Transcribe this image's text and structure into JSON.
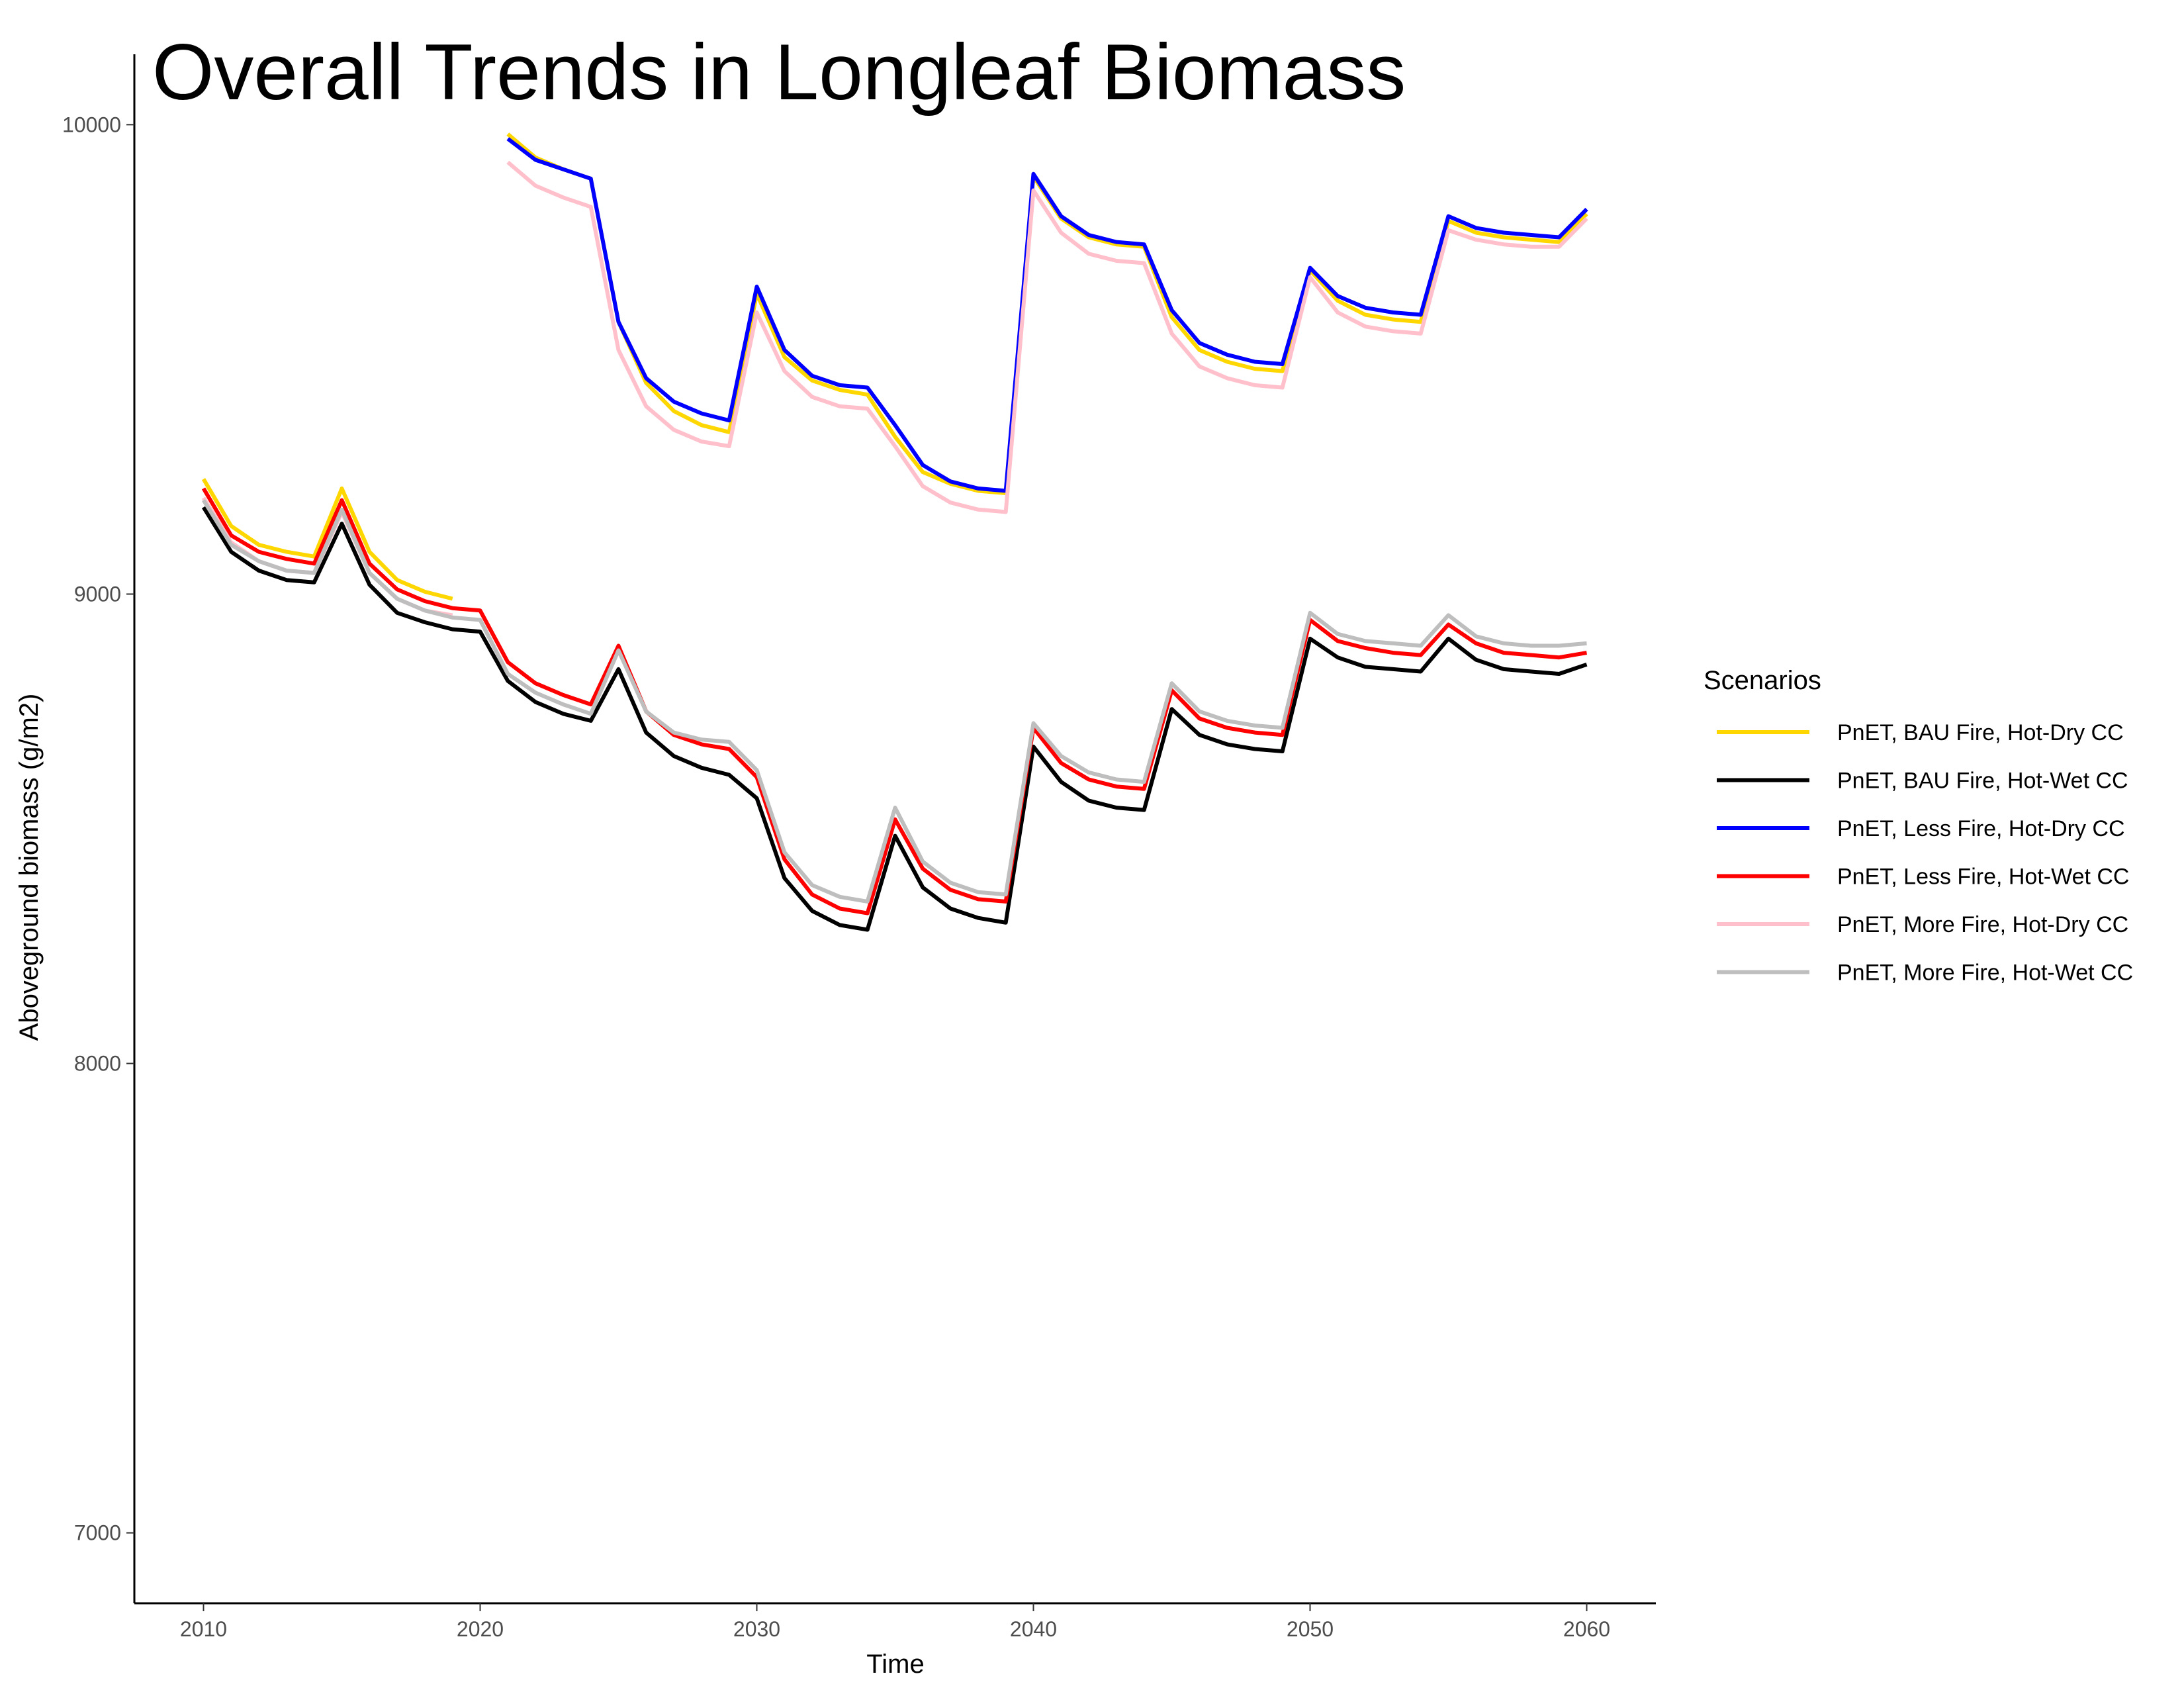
{
  "chart_data": {
    "type": "line",
    "title": "Overall Trends in Longleaf Biomass",
    "xlabel": "Time",
    "ylabel": "Aboveground biomass (g/m2)",
    "xlim": [
      2007.5,
      2062.5
    ],
    "ylim": [
      6850,
      10150
    ],
    "x_ticks": [
      2010,
      2020,
      2030,
      2040,
      2050,
      2060
    ],
    "y_ticks": [
      7000,
      8000,
      9000,
      10000
    ],
    "x_tick_labels": [
      "2010",
      "2020",
      "2030",
      "2040",
      "2050",
      "2060"
    ],
    "y_tick_labels": [
      "7000",
      "8000",
      "9000",
      "10000"
    ],
    "grid": false,
    "legend": {
      "title": "Scenarios",
      "position": "right"
    },
    "series": [
      {
        "name": "PnET, BAU Fire, Hot-Dry CC",
        "color": "#FFD700",
        "points": [
          [
            2010,
            9245
          ],
          [
            2011,
            9145
          ],
          [
            2012,
            9105
          ],
          [
            2013,
            9090
          ],
          [
            2014,
            9080
          ],
          [
            2015,
            9225
          ],
          [
            2016,
            9090
          ],
          [
            2017,
            9030
          ],
          [
            2018,
            9005
          ],
          [
            2019,
            8990
          ],
          [
            2021,
            9980
          ],
          [
            2022,
            9930
          ],
          [
            2023,
            9905
          ],
          [
            2024,
            9885
          ],
          [
            2025,
            9580
          ],
          [
            2026,
            9450
          ],
          [
            2027,
            9390
          ],
          [
            2028,
            9360
          ],
          [
            2029,
            9345
          ],
          [
            2030,
            9640
          ],
          [
            2031,
            9505
          ],
          [
            2032,
            9455
          ],
          [
            2033,
            9435
          ],
          [
            2034,
            9425
          ],
          [
            2035,
            9335
          ],
          [
            2036,
            9260
          ],
          [
            2037,
            9235
          ],
          [
            2038,
            9220
          ],
          [
            2039,
            9215
          ],
          [
            2040,
            9890
          ],
          [
            2041,
            9800
          ],
          [
            2042,
            9760
          ],
          [
            2043,
            9745
          ],
          [
            2044,
            9740
          ],
          [
            2045,
            9590
          ],
          [
            2046,
            9520
          ],
          [
            2047,
            9495
          ],
          [
            2048,
            9480
          ],
          [
            2049,
            9475
          ],
          [
            2050,
            9690
          ],
          [
            2051,
            9625
          ],
          [
            2052,
            9595
          ],
          [
            2053,
            9585
          ],
          [
            2054,
            9580
          ],
          [
            2055,
            9795
          ],
          [
            2056,
            9770
          ],
          [
            2057,
            9760
          ],
          [
            2058,
            9755
          ],
          [
            2059,
            9750
          ],
          [
            2060,
            9810
          ]
        ]
      },
      {
        "name": "PnET, BAU Fire, Hot-Wet CC",
        "color": "#000000",
        "points": [
          [
            2010,
            9185
          ],
          [
            2011,
            9090
          ],
          [
            2012,
            9050
          ],
          [
            2013,
            9030
          ],
          [
            2014,
            9025
          ],
          [
            2015,
            9150
          ],
          [
            2016,
            9020
          ],
          [
            2017,
            8960
          ],
          [
            2018,
            8940
          ],
          [
            2019,
            8925
          ],
          [
            2020,
            8920
          ],
          [
            2021,
            8815
          ],
          [
            2022,
            8770
          ],
          [
            2023,
            8745
          ],
          [
            2024,
            8730
          ],
          [
            2025,
            8840
          ],
          [
            2026,
            8705
          ],
          [
            2027,
            8655
          ],
          [
            2028,
            8630
          ],
          [
            2029,
            8615
          ],
          [
            2030,
            8565
          ],
          [
            2031,
            8395
          ],
          [
            2032,
            8325
          ],
          [
            2033,
            8295
          ],
          [
            2034,
            8285
          ],
          [
            2035,
            8485
          ],
          [
            2036,
            8375
          ],
          [
            2037,
            8330
          ],
          [
            2038,
            8310
          ],
          [
            2039,
            8300
          ],
          [
            2040,
            8675
          ],
          [
            2041,
            8600
          ],
          [
            2042,
            8560
          ],
          [
            2043,
            8545
          ],
          [
            2044,
            8540
          ],
          [
            2045,
            8755
          ],
          [
            2046,
            8700
          ],
          [
            2047,
            8680
          ],
          [
            2048,
            8670
          ],
          [
            2049,
            8665
          ],
          [
            2050,
            8905
          ],
          [
            2051,
            8865
          ],
          [
            2052,
            8845
          ],
          [
            2053,
            8840
          ],
          [
            2054,
            8835
          ],
          [
            2055,
            8905
          ],
          [
            2056,
            8860
          ],
          [
            2057,
            8840
          ],
          [
            2058,
            8835
          ],
          [
            2059,
            8830
          ],
          [
            2060,
            8850
          ]
        ]
      },
      {
        "name": "PnET, Less Fire, Hot-Dry CC",
        "color": "#0000FF",
        "points": [
          [
            2021,
            9970
          ],
          [
            2022,
            9925
          ],
          [
            2023,
            9905
          ],
          [
            2024,
            9885
          ],
          [
            2025,
            9580
          ],
          [
            2026,
            9460
          ],
          [
            2027,
            9410
          ],
          [
            2028,
            9385
          ],
          [
            2029,
            9370
          ],
          [
            2030,
            9655
          ],
          [
            2031,
            9520
          ],
          [
            2032,
            9465
          ],
          [
            2033,
            9445
          ],
          [
            2034,
            9440
          ],
          [
            2035,
            9360
          ],
          [
            2036,
            9275
          ],
          [
            2037,
            9240
          ],
          [
            2038,
            9225
          ],
          [
            2039,
            9220
          ],
          [
            2040,
            9895
          ],
          [
            2041,
            9805
          ],
          [
            2042,
            9765
          ],
          [
            2043,
            9750
          ],
          [
            2044,
            9745
          ],
          [
            2045,
            9605
          ],
          [
            2046,
            9535
          ],
          [
            2047,
            9510
          ],
          [
            2048,
            9495
          ],
          [
            2049,
            9490
          ],
          [
            2050,
            9695
          ],
          [
            2051,
            9635
          ],
          [
            2052,
            9610
          ],
          [
            2053,
            9600
          ],
          [
            2054,
            9595
          ],
          [
            2055,
            9805
          ],
          [
            2056,
            9780
          ],
          [
            2057,
            9770
          ],
          [
            2058,
            9765
          ],
          [
            2059,
            9760
          ],
          [
            2060,
            9820
          ]
        ]
      },
      {
        "name": "PnET, Less Fire, Hot-Wet CC",
        "color": "#FF0000",
        "points": [
          [
            2010,
            9225
          ],
          [
            2011,
            9125
          ],
          [
            2012,
            9090
          ],
          [
            2013,
            9075
          ],
          [
            2014,
            9065
          ],
          [
            2015,
            9200
          ],
          [
            2016,
            9065
          ],
          [
            2017,
            9010
          ],
          [
            2018,
            8985
          ],
          [
            2019,
            8970
          ],
          [
            2020,
            8965
          ],
          [
            2021,
            8855
          ],
          [
            2022,
            8810
          ],
          [
            2023,
            8785
          ],
          [
            2024,
            8765
          ],
          [
            2025,
            8890
          ],
          [
            2026,
            8750
          ],
          [
            2027,
            8700
          ],
          [
            2028,
            8680
          ],
          [
            2029,
            8670
          ],
          [
            2030,
            8610
          ],
          [
            2031,
            8435
          ],
          [
            2032,
            8360
          ],
          [
            2033,
            8330
          ],
          [
            2034,
            8320
          ],
          [
            2035,
            8520
          ],
          [
            2036,
            8415
          ],
          [
            2037,
            8370
          ],
          [
            2038,
            8350
          ],
          [
            2039,
            8345
          ],
          [
            2040,
            8715
          ],
          [
            2041,
            8640
          ],
          [
            2042,
            8605
          ],
          [
            2043,
            8590
          ],
          [
            2044,
            8585
          ],
          [
            2045,
            8795
          ],
          [
            2046,
            8735
          ],
          [
            2047,
            8715
          ],
          [
            2048,
            8705
          ],
          [
            2049,
            8700
          ],
          [
            2050,
            8945
          ],
          [
            2051,
            8900
          ],
          [
            2052,
            8885
          ],
          [
            2053,
            8875
          ],
          [
            2054,
            8870
          ],
          [
            2055,
            8935
          ],
          [
            2056,
            8895
          ],
          [
            2057,
            8875
          ],
          [
            2058,
            8870
          ],
          [
            2059,
            8865
          ],
          [
            2060,
            8875
          ]
        ]
      },
      {
        "name": "PnET, More Fire, Hot-Dry CC",
        "color": "#FFC0CB",
        "points": [
          [
            2010,
            9205
          ],
          [
            2011,
            9110
          ],
          [
            2012,
            9070
          ],
          [
            2013,
            9050
          ],
          [
            2014,
            9045
          ],
          [
            2015,
            9175
          ],
          [
            2016,
            9045
          ],
          [
            2017,
            8990
          ],
          [
            2018,
            8965
          ],
          [
            2019,
            8955
          ],
          [
            2021,
            9920
          ],
          [
            2022,
            9870
          ],
          [
            2023,
            9845
          ],
          [
            2024,
            9825
          ],
          [
            2025,
            9520
          ],
          [
            2026,
            9400
          ],
          [
            2027,
            9350
          ],
          [
            2028,
            9325
          ],
          [
            2029,
            9315
          ],
          [
            2030,
            9600
          ],
          [
            2031,
            9475
          ],
          [
            2032,
            9420
          ],
          [
            2033,
            9400
          ],
          [
            2034,
            9395
          ],
          [
            2035,
            9315
          ],
          [
            2036,
            9230
          ],
          [
            2037,
            9195
          ],
          [
            2038,
            9180
          ],
          [
            2039,
            9175
          ],
          [
            2040,
            9860
          ],
          [
            2041,
            9770
          ],
          [
            2042,
            9725
          ],
          [
            2043,
            9710
          ],
          [
            2044,
            9705
          ],
          [
            2045,
            9555
          ],
          [
            2046,
            9485
          ],
          [
            2047,
            9460
          ],
          [
            2048,
            9445
          ],
          [
            2049,
            9440
          ],
          [
            2050,
            9675
          ],
          [
            2051,
            9600
          ],
          [
            2052,
            9570
          ],
          [
            2053,
            9560
          ],
          [
            2054,
            9555
          ],
          [
            2055,
            9775
          ],
          [
            2056,
            9755
          ],
          [
            2057,
            9745
          ],
          [
            2058,
            9740
          ],
          [
            2059,
            9740
          ],
          [
            2060,
            9800
          ]
        ]
      },
      {
        "name": "PnET, More Fire, Hot-Wet CC",
        "color": "#BEBEBE",
        "points": [
          [
            2010,
            9200
          ],
          [
            2011,
            9105
          ],
          [
            2012,
            9070
          ],
          [
            2013,
            9050
          ],
          [
            2014,
            9045
          ],
          [
            2015,
            9180
          ],
          [
            2016,
            9045
          ],
          [
            2017,
            8990
          ],
          [
            2018,
            8965
          ],
          [
            2019,
            8950
          ],
          [
            2020,
            8945
          ],
          [
            2021,
            8830
          ],
          [
            2022,
            8790
          ],
          [
            2023,
            8765
          ],
          [
            2024,
            8745
          ],
          [
            2025,
            8880
          ],
          [
            2026,
            8750
          ],
          [
            2027,
            8705
          ],
          [
            2028,
            8690
          ],
          [
            2029,
            8685
          ],
          [
            2030,
            8625
          ],
          [
            2031,
            8450
          ],
          [
            2032,
            8380
          ],
          [
            2033,
            8355
          ],
          [
            2034,
            8345
          ],
          [
            2035,
            8545
          ],
          [
            2036,
            8430
          ],
          [
            2037,
            8385
          ],
          [
            2038,
            8365
          ],
          [
            2039,
            8360
          ],
          [
            2040,
            8725
          ],
          [
            2041,
            8655
          ],
          [
            2042,
            8620
          ],
          [
            2043,
            8605
          ],
          [
            2044,
            8600
          ],
          [
            2045,
            8810
          ],
          [
            2046,
            8750
          ],
          [
            2047,
            8730
          ],
          [
            2048,
            8720
          ],
          [
            2049,
            8715
          ],
          [
            2050,
            8960
          ],
          [
            2051,
            8915
          ],
          [
            2052,
            8900
          ],
          [
            2053,
            8895
          ],
          [
            2054,
            8890
          ],
          [
            2055,
            8955
          ],
          [
            2056,
            8910
          ],
          [
            2057,
            8895
          ],
          [
            2058,
            8890
          ],
          [
            2059,
            8890
          ],
          [
            2060,
            8895
          ]
        ]
      }
    ]
  }
}
